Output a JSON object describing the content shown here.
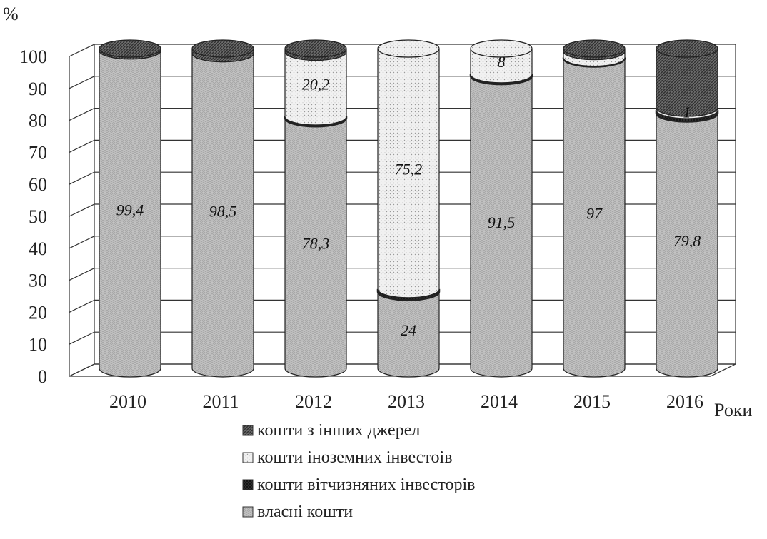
{
  "chart_data": {
    "type": "bar",
    "stacked": true,
    "three_d": "cylinder",
    "ylabel": "%",
    "xlabel": "Роки",
    "ylim": [
      0,
      100
    ],
    "yticks": [
      0,
      10,
      20,
      30,
      40,
      50,
      60,
      70,
      80,
      90,
      100
    ],
    "grid": true,
    "legend_position": "bottom",
    "categories": [
      "2010",
      "2011",
      "2012",
      "2013",
      "2014",
      "2015",
      "2016"
    ],
    "series": [
      {
        "name": "власні кошти",
        "values": [
          99.4,
          98.5,
          78.3,
          24,
          91.5,
          97,
          79.8
        ],
        "labels": [
          "99,4",
          "98,5",
          "78,3",
          "24",
          "91,5",
          "97",
          "79,8"
        ],
        "color": "#bdbdbd"
      },
      {
        "name": "кошти вітчизняних інвесторів",
        "values": [
          0,
          0,
          0.5,
          0.8,
          0.5,
          0.2,
          1
        ],
        "labels": [
          "",
          "",
          "",
          "",
          "",
          "",
          "1"
        ],
        "color": "#2a2a2a"
      },
      {
        "name": "кошти іноземних інвестоів",
        "values": [
          0,
          0,
          20.2,
          75.2,
          8,
          2,
          0.7
        ],
        "labels": [
          "",
          "",
          "20,2",
          "75,2",
          "8",
          "",
          ""
        ],
        "color": "#ececec"
      },
      {
        "name": "кошти з інших джерел",
        "values": [
          0.6,
          1.5,
          1,
          0,
          0,
          0.8,
          18.5
        ],
        "labels": [
          "",
          "",
          "",
          "",
          "",
          "",
          ""
        ],
        "color": "#6e6e6e"
      }
    ],
    "legend_order": [
      3,
      2,
      1,
      0
    ]
  }
}
